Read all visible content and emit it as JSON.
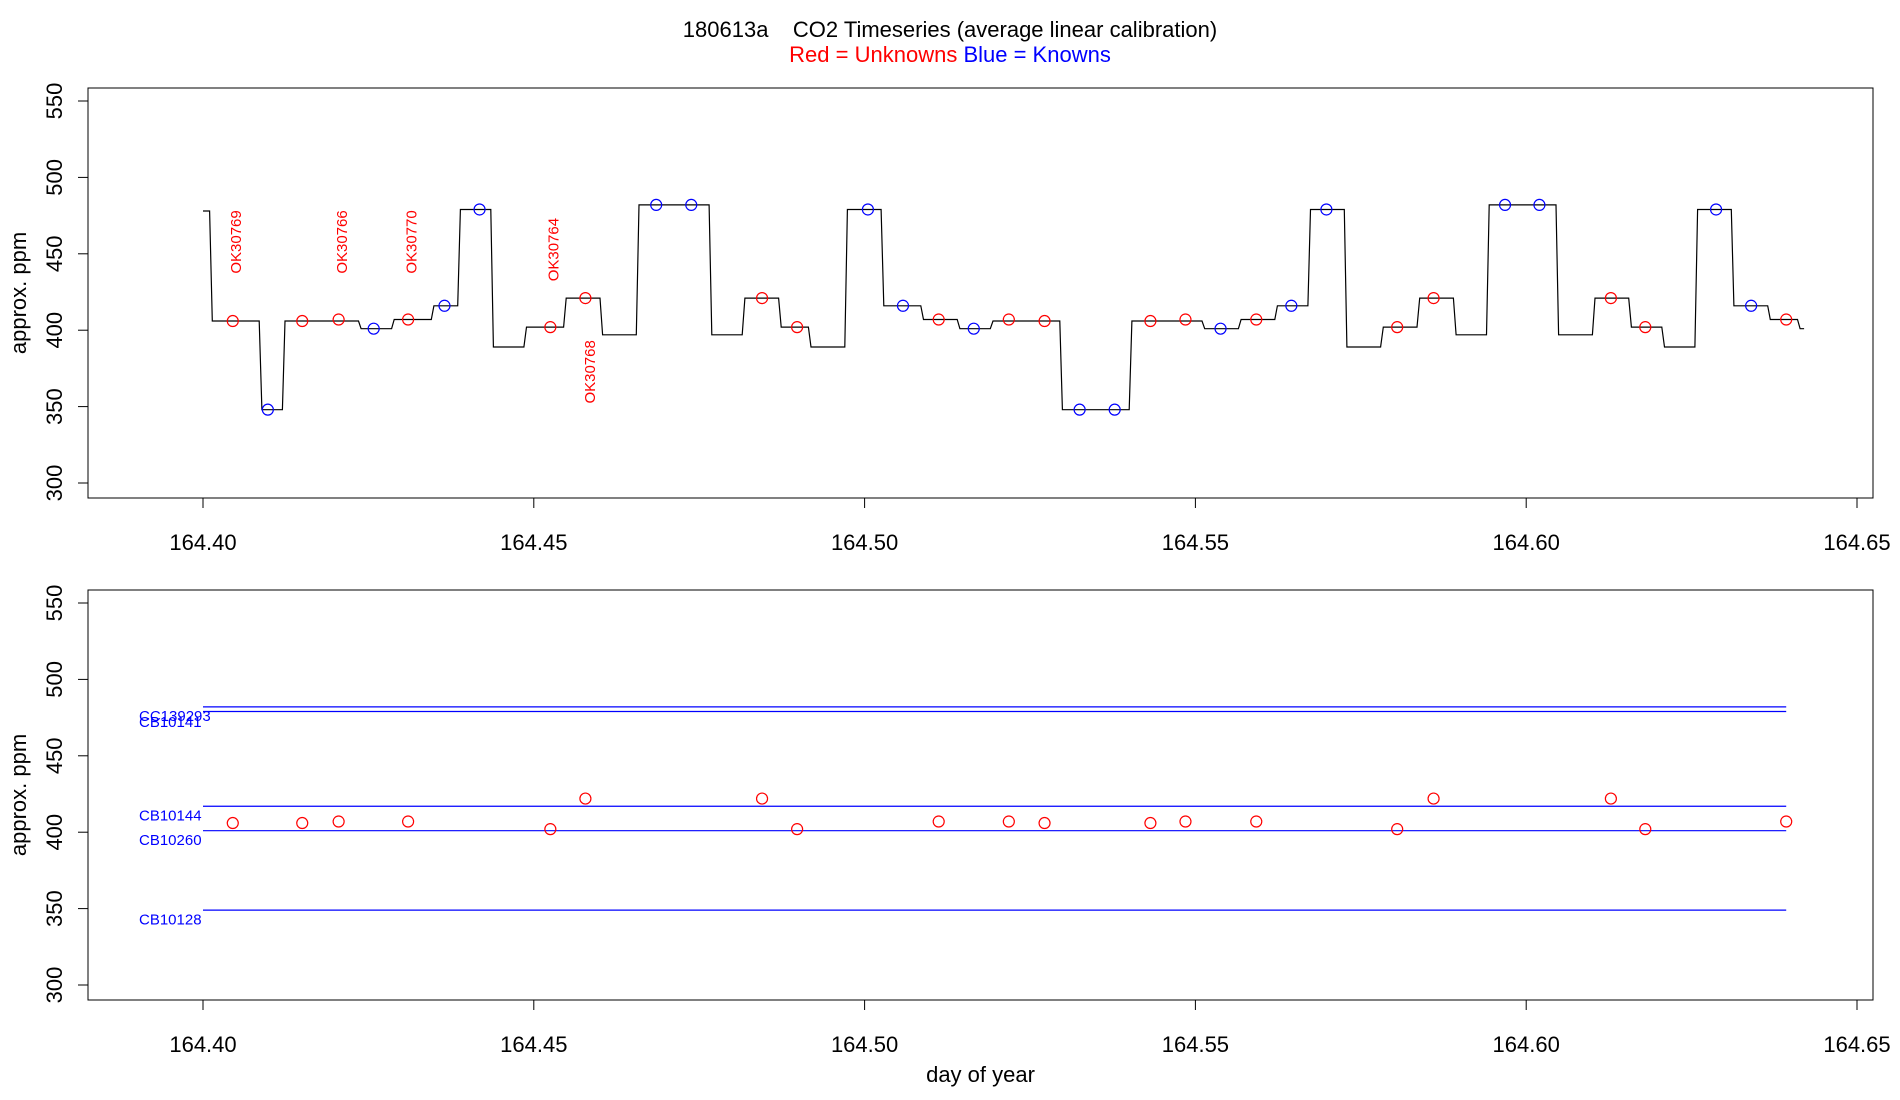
{
  "title_line1": "180613a    CO2 Timeseries (average linear calibration)",
  "title_line2": {
    "red_text": "Red = Unknowns",
    "blue_text": "Blue = Knowns"
  },
  "colors": {
    "unknown": "#ff0000",
    "known": "#0000ff",
    "trace": "#000000"
  },
  "chart_data": [
    {
      "type": "line",
      "panel": "top",
      "xlabel": "",
      "ylabel": "approx. ppm",
      "xlim": [
        164.4,
        164.65
      ],
      "ylim": [
        300,
        550
      ],
      "x_ticks": [
        164.4,
        164.45,
        164.5,
        164.55,
        164.6,
        164.65
      ],
      "x_tick_labels": [
        "164.40",
        "164.45",
        "164.50",
        "164.55",
        "164.60",
        "164.65"
      ],
      "y_ticks": [
        300,
        350,
        400,
        450,
        500,
        550
      ],
      "y_tick_labels": [
        "300",
        "350",
        "400",
        "450",
        "500",
        "550"
      ],
      "trace_segments": [
        {
          "start": 164.4,
          "end": 164.401,
          "value": 478
        },
        {
          "start": 164.401,
          "end": 164.4085,
          "value": 406
        },
        {
          "start": 164.4085,
          "end": 164.412,
          "value": 348
        },
        {
          "start": 164.412,
          "end": 164.4235,
          "value": 406
        },
        {
          "start": 164.4235,
          "end": 164.4285,
          "value": 401
        },
        {
          "start": 164.4285,
          "end": 164.4345,
          "value": 407
        },
        {
          "start": 164.4345,
          "end": 164.4385,
          "value": 416
        },
        {
          "start": 164.4385,
          "end": 164.4435,
          "value": 479
        },
        {
          "start": 164.4435,
          "end": 164.4485,
          "value": 389
        },
        {
          "start": 164.4485,
          "end": 164.4545,
          "value": 402
        },
        {
          "start": 164.4545,
          "end": 164.46,
          "value": 421
        },
        {
          "start": 164.46,
          "end": 164.4655,
          "value": 397
        },
        {
          "start": 164.4655,
          "end": 164.4765,
          "value": 482
        },
        {
          "start": 164.4765,
          "end": 164.4815,
          "value": 397
        },
        {
          "start": 164.4815,
          "end": 164.487,
          "value": 421
        },
        {
          "start": 164.487,
          "end": 164.4915,
          "value": 402
        },
        {
          "start": 164.4915,
          "end": 164.497,
          "value": 389
        },
        {
          "start": 164.497,
          "end": 164.5025,
          "value": 479
        },
        {
          "start": 164.5025,
          "end": 164.5085,
          "value": 416
        },
        {
          "start": 164.5085,
          "end": 164.514,
          "value": 407
        },
        {
          "start": 164.514,
          "end": 164.519,
          "value": 401
        },
        {
          "start": 164.519,
          "end": 164.5295,
          "value": 406
        },
        {
          "start": 164.5295,
          "end": 164.54,
          "value": 348
        },
        {
          "start": 164.54,
          "end": 164.551,
          "value": 406
        },
        {
          "start": 164.551,
          "end": 164.5565,
          "value": 401
        },
        {
          "start": 164.5565,
          "end": 164.562,
          "value": 407
        },
        {
          "start": 164.562,
          "end": 164.567,
          "value": 416
        },
        {
          "start": 164.567,
          "end": 164.5725,
          "value": 479
        },
        {
          "start": 164.5725,
          "end": 164.578,
          "value": 389
        },
        {
          "start": 164.578,
          "end": 164.5835,
          "value": 402
        },
        {
          "start": 164.5835,
          "end": 164.589,
          "value": 421
        },
        {
          "start": 164.589,
          "end": 164.594,
          "value": 397
        },
        {
          "start": 164.594,
          "end": 164.6045,
          "value": 482
        },
        {
          "start": 164.6045,
          "end": 164.61,
          "value": 397
        },
        {
          "start": 164.61,
          "end": 164.6155,
          "value": 421
        },
        {
          "start": 164.6155,
          "end": 164.6205,
          "value": 402
        },
        {
          "start": 164.6205,
          "end": 164.6255,
          "value": 389
        },
        {
          "start": 164.6255,
          "end": 164.631,
          "value": 479
        },
        {
          "start": 164.631,
          "end": 164.6365,
          "value": 416
        },
        {
          "start": 164.6365,
          "end": 164.641,
          "value": 407
        },
        {
          "start": 164.641,
          "end": 164.642,
          "value": 401
        }
      ],
      "unknown_points": [
        {
          "x": 164.4045,
          "y": 406
        },
        {
          "x": 164.415,
          "y": 406
        },
        {
          "x": 164.4205,
          "y": 407
        },
        {
          "x": 164.431,
          "y": 407
        },
        {
          "x": 164.4525,
          "y": 402
        },
        {
          "x": 164.4578,
          "y": 421
        },
        {
          "x": 164.4845,
          "y": 421
        },
        {
          "x": 164.4898,
          "y": 402
        },
        {
          "x": 164.5112,
          "y": 407
        },
        {
          "x": 164.5218,
          "y": 407
        },
        {
          "x": 164.5272,
          "y": 406
        },
        {
          "x": 164.5432,
          "y": 406
        },
        {
          "x": 164.5485,
          "y": 407
        },
        {
          "x": 164.5592,
          "y": 407
        },
        {
          "x": 164.5805,
          "y": 402
        },
        {
          "x": 164.586,
          "y": 421
        },
        {
          "x": 164.6128,
          "y": 421
        },
        {
          "x": 164.618,
          "y": 402
        },
        {
          "x": 164.6393,
          "y": 407
        }
      ],
      "known_points": [
        {
          "x": 164.4098,
          "y": 348
        },
        {
          "x": 164.4258,
          "y": 401
        },
        {
          "x": 164.4365,
          "y": 416
        },
        {
          "x": 164.4418,
          "y": 479
        },
        {
          "x": 164.4685,
          "y": 482
        },
        {
          "x": 164.4738,
          "y": 482
        },
        {
          "x": 164.5005,
          "y": 479
        },
        {
          "x": 164.5058,
          "y": 416
        },
        {
          "x": 164.5165,
          "y": 401
        },
        {
          "x": 164.5325,
          "y": 348
        },
        {
          "x": 164.5378,
          "y": 348
        },
        {
          "x": 164.5538,
          "y": 401
        },
        {
          "x": 164.5645,
          "y": 416
        },
        {
          "x": 164.5698,
          "y": 479
        },
        {
          "x": 164.5968,
          "y": 482
        },
        {
          "x": 164.602,
          "y": 482
        },
        {
          "x": 164.6287,
          "y": 479
        },
        {
          "x": 164.634,
          "y": 416
        }
      ],
      "annotations": [
        {
          "text": "OK30769",
          "x": 164.405,
          "y": 437
        },
        {
          "text": "OK30766",
          "x": 164.421,
          "y": 437
        },
        {
          "text": "OK30770",
          "x": 164.4315,
          "y": 437
        },
        {
          "text": "OK30764",
          "x": 164.453,
          "y": 432
        },
        {
          "text": "OK30768",
          "x": 164.4585,
          "y": 352
        }
      ]
    },
    {
      "type": "scatter",
      "panel": "bottom",
      "xlabel": "day of year",
      "ylabel": "approx. ppm",
      "xlim": [
        164.4,
        164.65
      ],
      "ylim": [
        300,
        550
      ],
      "x_ticks": [
        164.4,
        164.45,
        164.5,
        164.55,
        164.6,
        164.65
      ],
      "x_tick_labels": [
        "164.40",
        "164.45",
        "164.50",
        "164.55",
        "164.60",
        "164.65"
      ],
      "y_ticks": [
        300,
        350,
        400,
        450,
        500,
        550
      ],
      "y_tick_labels": [
        "300",
        "350",
        "400",
        "450",
        "500",
        "550"
      ],
      "reference_lines": [
        {
          "name": "CC139293",
          "value": 482,
          "x_start": 164.4,
          "x_end": 164.6393,
          "label_y": 476
        },
        {
          "name": "CB10141",
          "value": 479,
          "x_start": 164.4,
          "x_end": 164.6393,
          "label_y": 472
        },
        {
          "name": "CB10144",
          "value": 417,
          "x_start": 164.4,
          "x_end": 164.6393,
          "label_y": 411
        },
        {
          "name": "CB10260",
          "value": 401,
          "x_start": 164.4,
          "x_end": 164.6393,
          "label_y": 395
        },
        {
          "name": "CB10128",
          "value": 349,
          "x_start": 164.4,
          "x_end": 164.6393,
          "label_y": 343
        }
      ],
      "unknown_points": [
        {
          "x": 164.4045,
          "y": 406
        },
        {
          "x": 164.415,
          "y": 406
        },
        {
          "x": 164.4205,
          "y": 407
        },
        {
          "x": 164.431,
          "y": 407
        },
        {
          "x": 164.4525,
          "y": 402
        },
        {
          "x": 164.4578,
          "y": 422
        },
        {
          "x": 164.4845,
          "y": 422
        },
        {
          "x": 164.4898,
          "y": 402
        },
        {
          "x": 164.5112,
          "y": 407
        },
        {
          "x": 164.5218,
          "y": 407
        },
        {
          "x": 164.5272,
          "y": 406
        },
        {
          "x": 164.5432,
          "y": 406
        },
        {
          "x": 164.5485,
          "y": 407
        },
        {
          "x": 164.5592,
          "y": 407
        },
        {
          "x": 164.5805,
          "y": 402
        },
        {
          "x": 164.586,
          "y": 422
        },
        {
          "x": 164.6128,
          "y": 422
        },
        {
          "x": 164.618,
          "y": 402
        },
        {
          "x": 164.6393,
          "y": 407
        }
      ]
    }
  ]
}
